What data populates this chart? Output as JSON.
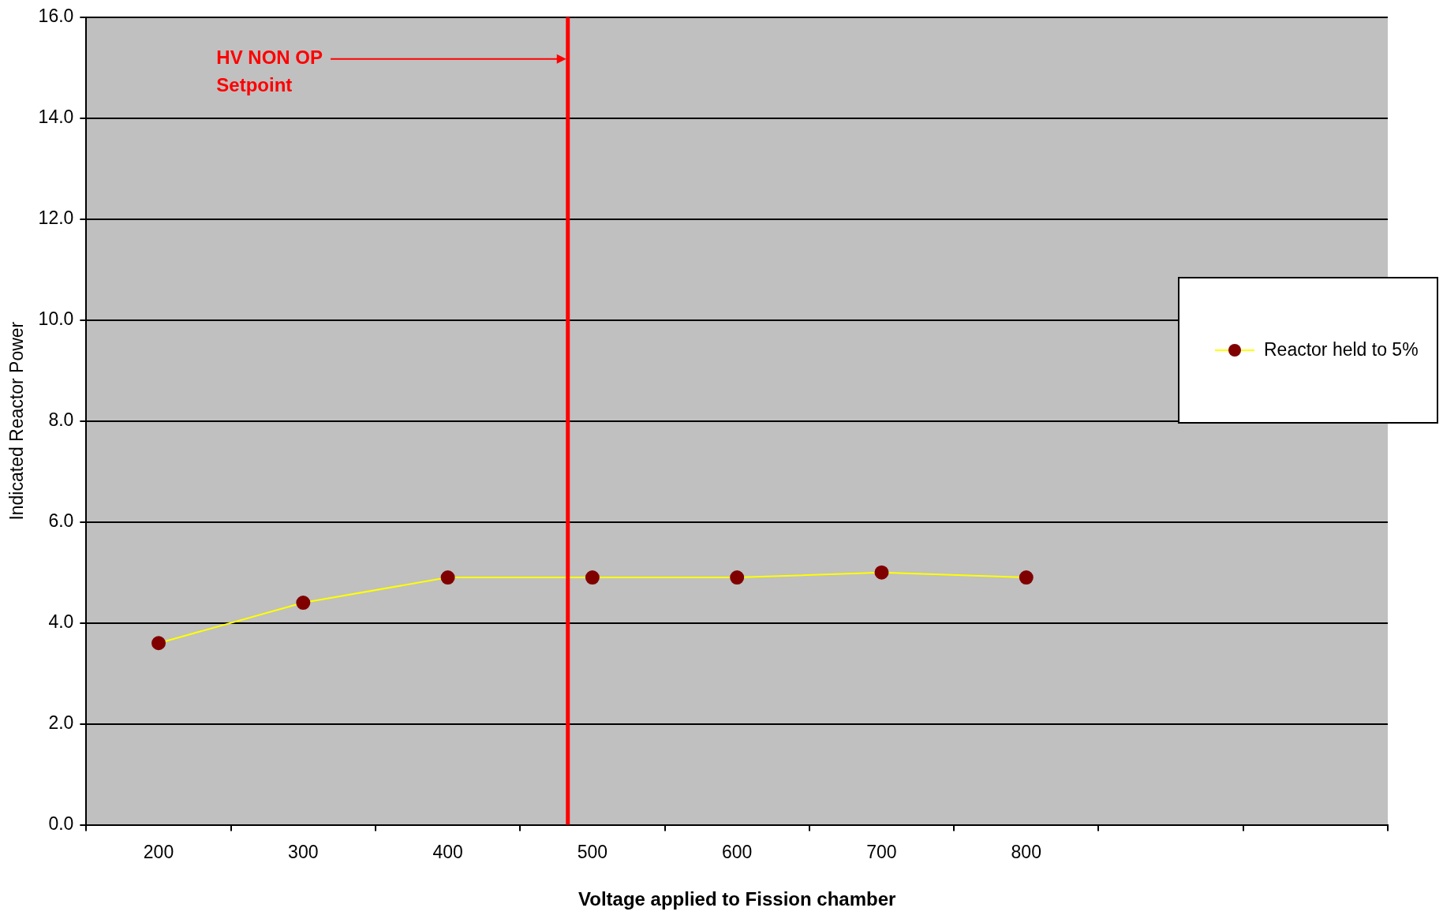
{
  "chart_data": {
    "type": "line",
    "xlabel": "Voltage applied to Fission chamber",
    "ylabel": "Indicated Reactor Power",
    "x": [
      200,
      300,
      400,
      500,
      600,
      700,
      800
    ],
    "series": [
      {
        "name": "Reactor held to 5%",
        "color": "#ffff00",
        "colors": [
          "#800000",
          "#800000",
          "#800000",
          "#800000",
          "#800000",
          "#800000",
          "#800000"
        ],
        "values": [
          3.6,
          4.4,
          4.9,
          4.9,
          4.9,
          5.0,
          4.9
        ]
      }
    ],
    "xlim": [
      150,
      1050
    ],
    "xticks": [
      {
        "value": 150,
        "label": null
      },
      {
        "value": 200,
        "label": "200"
      },
      {
        "value": 250,
        "label": null
      },
      {
        "value": 300,
        "label": "300"
      },
      {
        "value": 350,
        "label": null
      },
      {
        "value": 400,
        "label": "400"
      },
      {
        "value": 450,
        "label": null
      },
      {
        "value": 500,
        "label": "500"
      },
      {
        "value": 550,
        "label": null
      },
      {
        "value": 600,
        "label": "600"
      },
      {
        "value": 650,
        "label": null
      },
      {
        "value": 700,
        "label": "700"
      },
      {
        "value": 750,
        "label": null
      },
      {
        "value": 800,
        "label": "800"
      },
      {
        "value": 850,
        "label": null
      },
      {
        "value": 950,
        "label": null
      },
      {
        "value": 1050,
        "label": null
      }
    ],
    "ylim": [
      0,
      16
    ],
    "yticks": [
      {
        "value": 0,
        "label": "0.0"
      },
      {
        "value": 2,
        "label": "2.0"
      },
      {
        "value": 4,
        "label": "4.0"
      },
      {
        "value": 6,
        "label": "6.0"
      },
      {
        "value": 8,
        "label": "8.0"
      },
      {
        "value": 10,
        "label": "10.0"
      },
      {
        "value": 12,
        "label": "12.0"
      },
      {
        "value": 14,
        "label": "14.0"
      },
      {
        "value": 16,
        "label": "16.0"
      }
    ],
    "ref_lines": [
      {
        "axis": "x",
        "value": 483,
        "label": "HV NON OP Setpoint",
        "color": "#ff0000"
      }
    ],
    "grid": "y",
    "legend": "right",
    "marker": "circle",
    "line_style": "solid"
  }
}
